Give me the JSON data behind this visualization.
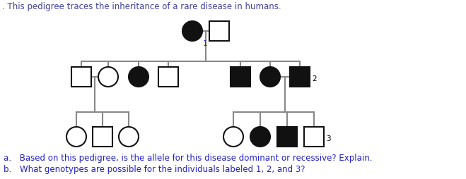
{
  "title": ". This pedigree traces the inheritance of a rare disease in humans.",
  "title_color": "#4040a0",
  "question_a": "a. Based on this pedigree, is the allele for this disease dominant or recessive? Explain.",
  "question_b": "b. What genotypes are possible for the individuals labeled 1, 2, and 3?",
  "question_color": "#2222cc",
  "bg_color": "#ffffff",
  "symbol_r": 14,
  "line_color": "#888888",
  "filled_color": "#111111",
  "empty_color": "#ffffff",
  "edge_color": "#111111",
  "lw": 1.5
}
